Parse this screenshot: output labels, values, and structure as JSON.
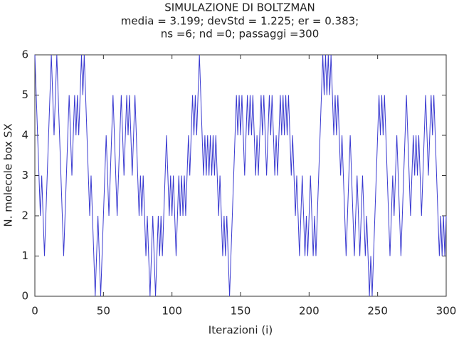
{
  "chart_data": {
    "type": "line",
    "title": "SIMULAZIONE DI BOLTZMAN",
    "subtitle_lines": [
      "media = 3.199; devStd = 1.225; er = 0.383;",
      "ns =6; nd =0; passaggi =300"
    ],
    "x_label": "Iterazioni (i)",
    "y_label": "N. molecole box SX",
    "xlim": [
      0,
      300
    ],
    "xticks": [
      0,
      50,
      100,
      150,
      200,
      250,
      300
    ],
    "ylim": [
      0,
      6
    ],
    "yticks": [
      0,
      1,
      2,
      3,
      4,
      5,
      6
    ],
    "grid": false,
    "x": [
      0,
      1,
      2,
      3,
      4,
      5,
      6,
      7,
      8,
      9,
      10,
      11,
      12,
      13,
      14,
      15,
      16,
      17,
      18,
      19,
      20,
      21,
      22,
      23,
      24,
      25,
      26,
      27,
      28,
      29,
      30,
      31,
      32,
      33,
      34,
      35,
      36,
      37,
      38,
      39,
      40,
      41,
      42,
      43,
      44,
      45,
      46,
      47,
      48,
      49,
      50,
      51,
      52,
      53,
      54,
      55,
      56,
      57,
      58,
      59,
      60,
      61,
      62,
      63,
      64,
      65,
      66,
      67,
      68,
      69,
      70,
      71,
      72,
      73,
      74,
      75,
      76,
      77,
      78,
      79,
      80,
      81,
      82,
      83,
      84,
      85,
      86,
      87,
      88,
      89,
      90,
      91,
      92,
      93,
      94,
      95,
      96,
      97,
      98,
      99,
      100,
      101,
      102,
      103,
      104,
      105,
      106,
      107,
      108,
      109,
      110,
      111,
      112,
      113,
      114,
      115,
      116,
      117,
      118,
      119,
      120,
      121,
      122,
      123,
      124,
      125,
      126,
      127,
      128,
      129,
      130,
      131,
      132,
      133,
      134,
      135,
      136,
      137,
      138,
      139,
      140,
      141,
      142,
      143,
      144,
      145,
      146,
      147,
      148,
      149,
      150,
      151,
      152,
      153,
      154,
      155,
      156,
      157,
      158,
      159,
      160,
      161,
      162,
      163,
      164,
      165,
      166,
      167,
      168,
      169,
      170,
      171,
      172,
      173,
      174,
      175,
      176,
      177,
      178,
      179,
      180,
      181,
      182,
      183,
      184,
      185,
      186,
      187,
      188,
      189,
      190,
      191,
      192,
      193,
      194,
      195,
      196,
      197,
      198,
      199,
      200,
      201,
      202,
      203,
      204,
      205,
      206,
      207,
      208,
      209,
      210,
      211,
      212,
      213,
      214,
      215,
      216,
      217,
      218,
      219,
      220,
      221,
      222,
      223,
      224,
      225,
      226,
      227,
      228,
      229,
      230,
      231,
      232,
      233,
      234,
      235,
      236,
      237,
      238,
      239,
      240,
      241,
      242,
      243,
      244,
      245,
      246,
      247,
      248,
      249,
      250,
      251,
      252,
      253,
      254,
      255,
      256,
      257,
      258,
      259,
      260,
      261,
      262,
      263,
      264,
      265,
      266,
      267,
      268,
      269,
      270,
      271,
      272,
      273,
      274,
      275,
      276,
      277,
      278,
      279,
      280,
      281,
      282,
      283,
      284,
      285,
      286,
      287,
      288,
      289,
      290,
      291,
      292,
      293,
      294,
      295,
      296,
      297,
      298,
      299,
      300
    ],
    "series": [
      {
        "color": "#3a3ad0",
        "values": [
          6,
          5,
          4,
          3,
          2,
          3,
          2,
          1,
          2,
          3,
          4,
          5,
          6,
          5,
          4,
          5,
          6,
          5,
          4,
          3,
          2,
          1,
          2,
          3,
          4,
          5,
          4,
          3,
          4,
          5,
          4,
          5,
          4,
          5,
          6,
          5,
          6,
          5,
          4,
          3,
          2,
          3,
          2,
          1,
          0,
          1,
          2,
          1,
          0,
          1,
          2,
          3,
          4,
          3,
          2,
          3,
          4,
          5,
          4,
          3,
          2,
          3,
          4,
          5,
          4,
          3,
          4,
          5,
          4,
          5,
          4,
          3,
          4,
          5,
          4,
          3,
          2,
          3,
          2,
          3,
          2,
          1,
          2,
          1,
          0,
          1,
          2,
          1,
          0,
          1,
          2,
          1,
          2,
          1,
          2,
          3,
          4,
          3,
          2,
          3,
          2,
          3,
          2,
          1,
          2,
          3,
          2,
          3,
          2,
          3,
          2,
          3,
          4,
          3,
          4,
          5,
          4,
          5,
          4,
          5,
          6,
          5,
          4,
          3,
          4,
          3,
          4,
          3,
          4,
          3,
          4,
          3,
          4,
          3,
          2,
          3,
          2,
          1,
          2,
          1,
          2,
          1,
          0,
          1,
          2,
          3,
          4,
          5,
          4,
          5,
          4,
          5,
          4,
          3,
          4,
          5,
          4,
          5,
          4,
          5,
          4,
          3,
          4,
          3,
          4,
          5,
          4,
          5,
          4,
          3,
          4,
          5,
          4,
          5,
          4,
          3,
          4,
          3,
          4,
          5,
          4,
          5,
          4,
          5,
          4,
          5,
          4,
          3,
          4,
          3,
          2,
          3,
          2,
          1,
          2,
          3,
          2,
          1,
          2,
          1,
          2,
          3,
          2,
          1,
          2,
          1,
          2,
          3,
          4,
          5,
          6,
          5,
          6,
          5,
          6,
          5,
          6,
          5,
          4,
          5,
          4,
          5,
          4,
          3,
          4,
          3,
          2,
          1,
          2,
          3,
          4,
          3,
          2,
          1,
          2,
          3,
          2,
          1,
          2,
          3,
          2,
          1,
          2,
          1,
          0,
          1,
          0,
          1,
          2,
          3,
          4,
          5,
          4,
          5,
          4,
          5,
          4,
          3,
          2,
          1,
          2,
          3,
          2,
          3,
          4,
          3,
          2,
          1,
          2,
          3,
          4,
          5,
          4,
          3,
          2,
          3,
          4,
          3,
          4,
          3,
          4,
          3,
          2,
          3,
          4,
          5,
          4,
          3,
          4,
          5,
          4,
          5,
          4,
          3,
          2,
          1,
          2,
          1,
          2,
          1,
          2
        ]
      }
    ]
  }
}
